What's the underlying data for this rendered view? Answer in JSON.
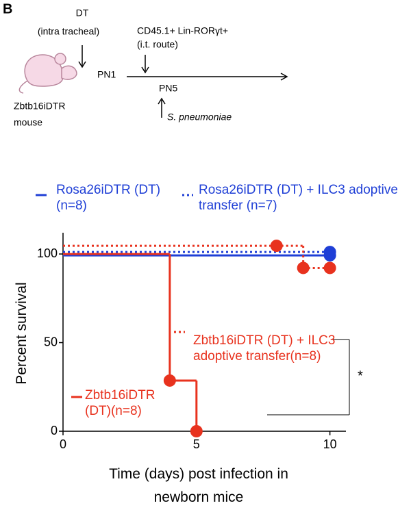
{
  "panel_label": "B",
  "schematic": {
    "dt": "DT",
    "dt_route": "(intra tracheal)",
    "pn1": "PN1",
    "mouse_strain": "Zbtb16iDTR",
    "mouse": "mouse",
    "cells": "CD45.1+ Lin-RORγt+",
    "cells_route": "(i.t. route)",
    "pn5": "PN5",
    "infection": "S. pneumoniae"
  },
  "chart_data": {
    "type": "line",
    "step": true,
    "ylabel": "Percent survival",
    "xlabel": "Time (days) post infection in newborn mice",
    "xlim": [
      0,
      10.6
    ],
    "xticks": [
      0,
      5,
      10
    ],
    "ylim": [
      0,
      112
    ],
    "yticks": [
      0,
      50,
      100
    ],
    "series": [
      {
        "name": "Rosa26iDTR (DT) (n=8)",
        "color": "#1f3fd6",
        "dash": false,
        "x": [
          0,
          10
        ],
        "values": [
          100,
          100
        ]
      },
      {
        "name": "Rosa26iDTR (DT) + ILC3 adoptive transfer (n=7)",
        "color": "#1f3fd6",
        "dash": true,
        "x": [
          0,
          10
        ],
        "values": [
          100,
          100
        ]
      },
      {
        "name": "Zbtb16iDTR (DT) + ILC3 adoptive transfer(n=8)",
        "color": "#e8321e",
        "dash": true,
        "x": [
          0,
          8,
          9,
          10
        ],
        "values": [
          100,
          100,
          87.5,
          87.5
        ]
      },
      {
        "name": "Zbtb16iDTR (DT)(n=8)",
        "color": "#e8321e",
        "dash": false,
        "x": [
          0,
          4,
          5
        ],
        "values": [
          100,
          28.6,
          0
        ]
      }
    ],
    "annotations": [
      "*"
    ]
  }
}
